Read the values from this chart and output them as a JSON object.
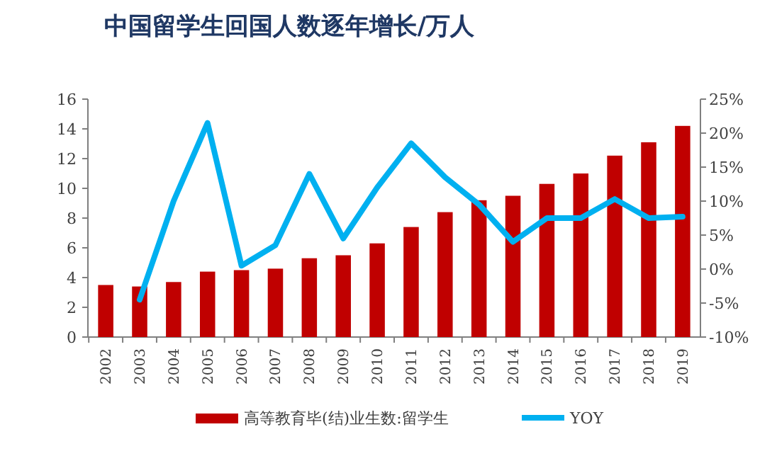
{
  "chart_data": {
    "type": "bar",
    "title": "中国留学生回国人数逐年增长/万人",
    "categories": [
      "2002",
      "2003",
      "2004",
      "2005",
      "2006",
      "2007",
      "2008",
      "2009",
      "2010",
      "2011",
      "2012",
      "2013",
      "2014",
      "2015",
      "2016",
      "2017",
      "2018",
      "2019"
    ],
    "series": [
      {
        "name": "高等教育毕(结)业生数:留学生",
        "color": "#c00000",
        "values": [
          3.5,
          3.4,
          3.7,
          4.4,
          4.5,
          4.6,
          5.3,
          5.5,
          6.3,
          7.4,
          8.4,
          9.2,
          9.5,
          10.3,
          11,
          12.2,
          13.1,
          14.2
        ]
      },
      {
        "name": "YOY",
        "color": "#00b0f0",
        "type": "line",
        "axis": "y2",
        "values": [
          null,
          -4.5,
          10,
          21.5,
          0.5,
          3.5,
          14,
          4.5,
          12,
          18.5,
          13.5,
          9.5,
          4,
          7.5,
          7.5,
          10.3,
          7.5,
          7.7
        ]
      }
    ],
    "ylim": [
      0,
      16
    ],
    "yticks": [
      0,
      2,
      4,
      6,
      8,
      10,
      12,
      14,
      16
    ],
    "y2lim": [
      -10,
      25
    ],
    "y2ticks": [
      {
        "value": -10,
        "label": "-10%"
      },
      {
        "value": -5,
        "label": "-5%"
      },
      {
        "value": 0,
        "label": "0%"
      },
      {
        "value": 5,
        "label": "5%"
      },
      {
        "value": 10,
        "label": "10%"
      },
      {
        "value": 15,
        "label": "15%"
      },
      {
        "value": 20,
        "label": "20%"
      },
      {
        "value": 25,
        "label": "25%"
      }
    ],
    "legend": "bottom"
  }
}
